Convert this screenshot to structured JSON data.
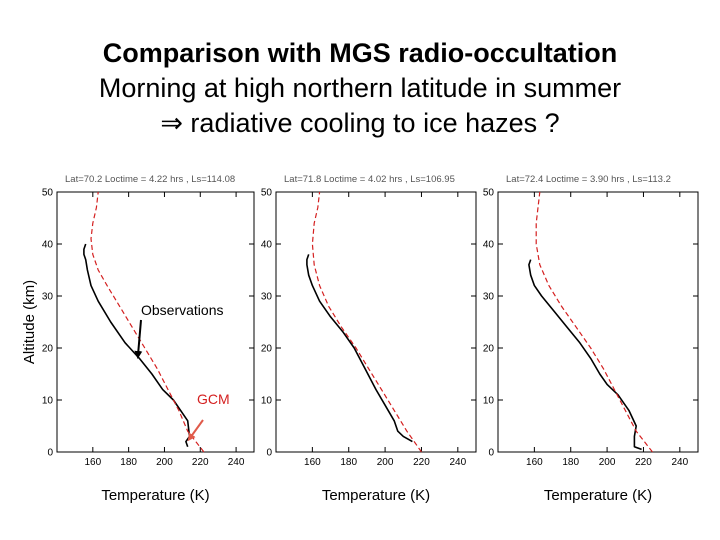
{
  "title_line1": "Comparison with MGS radio-occultation",
  "title_line2": "Morning at high northern latitude in summer",
  "title_line3": "⇒ radiative cooling to ice hazes ?",
  "annotations": {
    "observations": "Observations",
    "gcm": "GCM"
  },
  "colors": {
    "observations": "#000000",
    "gcm": "#d42020",
    "arrow_gcm": "#e05a4a",
    "panel_title": "#555555"
  },
  "chart_data": [
    {
      "type": "line",
      "title": "Lat=70.2 Loctime = 4.22 hrs , Ls=114.08",
      "xlabel": "Temperature (K)",
      "ylabel": "Altitude (km)",
      "xlim": [
        140,
        250
      ],
      "ylim": [
        0,
        50
      ],
      "xticks": [
        "160",
        "180",
        "200",
        "220",
        "240"
      ],
      "yticks": [
        "0",
        "10",
        "20",
        "30",
        "40",
        "50"
      ],
      "series": [
        {
          "name": "Observations",
          "style": "solid",
          "x": [
            213,
            212,
            214,
            213,
            209,
            205,
            199,
            193,
            186,
            178,
            170,
            163,
            159,
            157,
            156,
            155,
            155,
            156
          ],
          "y": [
            1,
            2,
            3,
            6,
            8,
            10,
            12,
            15,
            18,
            21,
            25,
            29,
            32,
            35,
            37,
            38,
            39,
            40
          ]
        },
        {
          "name": "GCM",
          "style": "dashed",
          "x": [
            222,
            213,
            208,
            202,
            196,
            189,
            182,
            175,
            168,
            163,
            160,
            159,
            160,
            162,
            163
          ],
          "y": [
            0,
            4,
            8,
            12,
            16,
            20,
            24,
            28,
            32,
            35,
            38,
            41,
            44,
            47,
            50
          ]
        }
      ]
    },
    {
      "type": "line",
      "title": "Lat=71.8 Loctime = 4.02 hrs , Ls=106.95",
      "xlabel": "Temperature (K)",
      "ylabel": "",
      "xlim": [
        140,
        250
      ],
      "ylim": [
        0,
        50
      ],
      "xticks": [
        "160",
        "180",
        "200",
        "220",
        "240"
      ],
      "yticks": [
        "0",
        "10",
        "20",
        "30",
        "40",
        "50"
      ],
      "series": [
        {
          "name": "Observations",
          "style": "solid",
          "x": [
            215,
            210,
            207,
            205,
            200,
            195,
            189,
            183,
            177,
            170,
            164,
            160,
            158,
            157,
            157,
            158
          ],
          "y": [
            2,
            3,
            4,
            6,
            9,
            12,
            16,
            20,
            23,
            26,
            29,
            32,
            34,
            36,
            37,
            38
          ]
        },
        {
          "name": "GCM",
          "style": "dashed",
          "x": [
            220,
            212,
            205,
            198,
            191,
            184,
            176,
            169,
            164,
            161,
            160,
            161,
            163,
            164
          ],
          "y": [
            0,
            4,
            8,
            12,
            16,
            20,
            24,
            28,
            32,
            36,
            40,
            44,
            47,
            50
          ]
        }
      ]
    },
    {
      "type": "line",
      "title": "Lat=72.4 Loctime = 3.90 hrs , Ls=113.2",
      "xlabel": "Temperature (K)",
      "ylabel": "",
      "xlim": [
        140,
        250
      ],
      "ylim": [
        0,
        50
      ],
      "xticks": [
        "160",
        "180",
        "200",
        "220",
        "240"
      ],
      "yticks": [
        "0",
        "10",
        "20",
        "30",
        "40",
        "50"
      ],
      "series": [
        {
          "name": "Observations",
          "style": "solid",
          "x": [
            219,
            215,
            215,
            216,
            212,
            206,
            200,
            196,
            191,
            185,
            178,
            171,
            164,
            160,
            158,
            157,
            158
          ],
          "y": [
            0.5,
            1,
            3,
            5,
            8,
            11,
            13,
            15,
            18,
            21,
            24,
            27,
            30,
            32,
            34,
            36,
            37
          ]
        },
        {
          "name": "GCM",
          "style": "dashed",
          "x": [
            225,
            216,
            210,
            204,
            198,
            191,
            183,
            175,
            168,
            163,
            161,
            161,
            162,
            163
          ],
          "y": [
            0,
            4,
            8,
            12,
            16,
            20,
            24,
            28,
            32,
            36,
            40,
            44,
            47,
            50
          ]
        }
      ]
    }
  ]
}
